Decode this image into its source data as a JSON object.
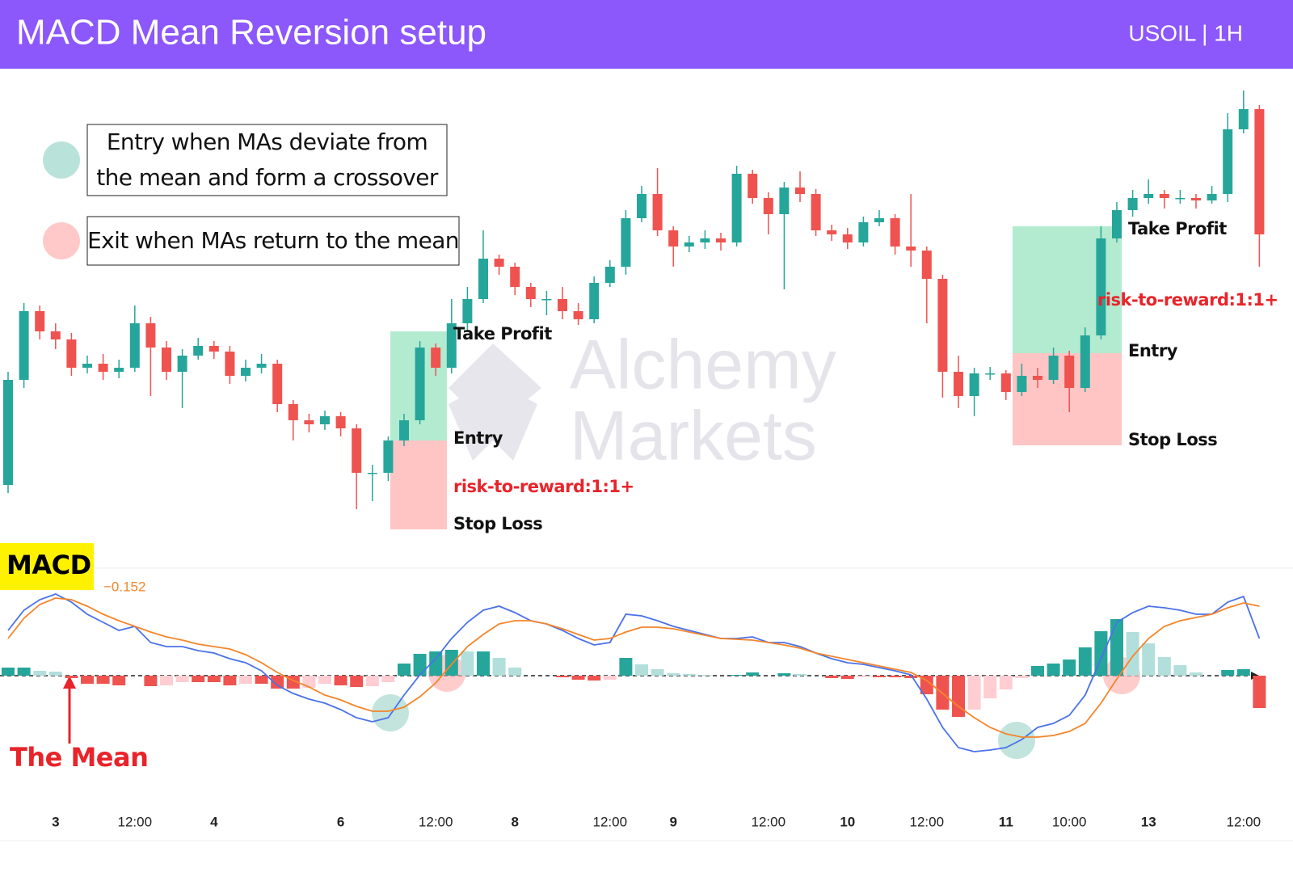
{
  "header": {
    "title": "MACD Mean Reversion setup",
    "symbol": "USOIL | 1H"
  },
  "legend": [
    {
      "lines": [
        "Entry when MAs deviate from",
        "the mean and form a crossover"
      ],
      "color": "#b9e3da"
    },
    {
      "lines": [
        "Exit when MAs return to the mean"
      ],
      "color": "#ffc9c9"
    }
  ],
  "watermark": [
    "Alchemy",
    "Markets"
  ],
  "chart_data": {
    "type": "candlestick",
    "up_color": "#26a69a",
    "down_color": "#ef5350",
    "ylim": [
      0,
      600
    ],
    "categories": [
      null,
      null,
      null,
      "3",
      null,
      null,
      null,
      null,
      "12:00",
      null,
      null,
      null,
      null,
      "4",
      null,
      null,
      null,
      null,
      null,
      null,
      null,
      "6",
      null,
      null,
      null,
      null,
      null,
      "12:00",
      null,
      null,
      null,
      null,
      "8",
      null,
      null,
      null,
      null,
      null,
      "12:00",
      null,
      null,
      null,
      "9",
      null,
      null,
      null,
      null,
      null,
      "12:00",
      null,
      null,
      null,
      null,
      "10",
      null,
      null,
      null,
      null,
      "12:00",
      null,
      null,
      null,
      null,
      "11",
      null,
      null,
      null,
      "10:00",
      null,
      null,
      null,
      null,
      "13",
      null,
      null,
      null,
      null,
      null,
      "12:00",
      null
    ],
    "open": [
      90,
      220,
      305,
      280,
      270,
      235,
      240,
      230,
      235,
      290,
      260,
      230,
      250,
      262,
      255,
      225,
      235,
      240,
      190,
      170,
      165,
      175,
      160,
      105,
      105,
      145,
      170,
      260,
      235,
      290,
      320,
      370,
      360,
      335,
      320,
      320,
      305,
      295,
      340,
      360,
      420,
      450,
      405,
      385,
      390,
      395,
      390,
      475,
      445,
      425,
      458,
      450,
      405,
      400,
      390,
      415,
      420,
      385,
      380,
      345,
      230,
      200,
      228,
      228,
      205,
      225,
      220,
      250,
      210,
      275,
      395,
      430,
      445,
      450,
      445,
      445,
      442,
      450,
      530,
      555
    ],
    "high": [
      230,
      315,
      312,
      290,
      278,
      250,
      252,
      245,
      312,
      298,
      268,
      258,
      272,
      268,
      262,
      245,
      252,
      245,
      195,
      178,
      182,
      180,
      165,
      115,
      150,
      178,
      268,
      265,
      320,
      335,
      405,
      375,
      365,
      340,
      330,
      335,
      315,
      348,
      368,
      430,
      460,
      482,
      410,
      398,
      405,
      402,
      485,
      480,
      452,
      465,
      478,
      456,
      412,
      408,
      422,
      430,
      425,
      450,
      385,
      350,
      250,
      235,
      236,
      232,
      240,
      235,
      260,
      256,
      285,
      410,
      440,
      455,
      468,
      455,
      455,
      450,
      460,
      550,
      578,
      560
    ],
    "low": [
      80,
      210,
      270,
      258,
      225,
      228,
      220,
      222,
      230,
      200,
      220,
      185,
      245,
      246,
      215,
      218,
      228,
      180,
      145,
      155,
      158,
      150,
      60,
      70,
      95,
      138,
      165,
      225,
      228,
      280,
      315,
      350,
      325,
      310,
      300,
      295,
      288,
      290,
      335,
      350,
      415,
      398,
      360,
      378,
      382,
      380,
      385,
      438,
      400,
      332,
      440,
      398,
      392,
      382,
      385,
      410,
      375,
      360,
      290,
      198,
      185,
      175,
      220,
      195,
      200,
      210,
      215,
      180,
      205,
      270,
      390,
      422,
      438,
      432,
      438,
      432,
      438,
      440,
      525,
      360
    ],
    "close": [
      220,
      305,
      280,
      270,
      235,
      240,
      230,
      235,
      290,
      260,
      230,
      250,
      262,
      255,
      225,
      235,
      240,
      190,
      170,
      165,
      175,
      160,
      105,
      105,
      145,
      170,
      260,
      235,
      290,
      320,
      370,
      360,
      335,
      320,
      320,
      305,
      295,
      340,
      360,
      420,
      450,
      405,
      385,
      390,
      395,
      390,
      475,
      445,
      425,
      458,
      450,
      405,
      400,
      390,
      415,
      420,
      385,
      380,
      345,
      230,
      200,
      228,
      228,
      205,
      225,
      220,
      250,
      210,
      275,
      395,
      430,
      445,
      450,
      445,
      445,
      442,
      450,
      530,
      555,
      400
    ],
    "trades": [
      {
        "take_profit": 280,
        "entry": 145,
        "stop_loss": 35,
        "tp_label": "Take Profit",
        "rr_label": "risk-to-reward:1:1+",
        "entry_label": "Entry",
        "sl_label": "Stop Loss"
      },
      {
        "take_profit": 410,
        "entry": 253,
        "stop_loss": 139,
        "tp_label": "Take Profit",
        "rr_label": "risk-to-reward:1:1+",
        "entry_label": "Entry",
        "sl_label": "Stop Loss"
      }
    ],
    "tp_color": "#b3ebd0",
    "sl_color": "#ffc5c5",
    "macd": {
      "label": "MACD",
      "readout": "−0.152",
      "readout_color": "#f4852a",
      "mean_label": "The Mean",
      "ylim": [
        -150,
        150
      ],
      "series": [
        {
          "color": "#4a72e8",
          "values": [
            56,
            81,
            94,
            101,
            91,
            76,
            66,
            56,
            61,
            41,
            36,
            36,
            31,
            28,
            21,
            16,
            6,
            -12,
            -22,
            -29,
            -34,
            -42,
            -52,
            -57,
            -52,
            -24,
            1,
            21,
            46,
            66,
            81,
            86,
            78,
            68,
            64,
            56,
            46,
            38,
            41,
            76,
            74,
            68,
            61,
            56,
            51,
            46,
            46,
            48,
            41,
            41,
            36,
            28,
            21,
            16,
            14,
            10,
            6,
            1,
            -29,
            -64,
            -89,
            -94,
            -92,
            -89,
            -79,
            -64,
            -59,
            -49,
            -24,
            21,
            66,
            78,
            86,
            84,
            81,
            76,
            76,
            91,
            98,
            46
          ]
        },
        {
          "color": "#f4852a",
          "values": [
            46,
            71,
            88,
            96,
            94,
            86,
            76,
            68,
            61,
            54,
            48,
            44,
            39,
            36,
            33,
            26,
            16,
            4,
            -6,
            -14,
            -24,
            -30,
            -38,
            -44,
            -44,
            -39,
            -26,
            -9,
            14,
            36,
            51,
            64,
            68,
            68,
            64,
            58,
            51,
            44,
            46,
            54,
            60,
            60,
            58,
            54,
            50,
            46,
            45,
            44,
            41,
            38,
            34,
            28,
            24,
            20,
            16,
            12,
            8,
            4,
            -6,
            -22,
            -38,
            -52,
            -64,
            -72,
            -76,
            -76,
            -74,
            -69,
            -59,
            -34,
            -4,
            24,
            46,
            61,
            68,
            72,
            76,
            84,
            90,
            86
          ]
        }
      ],
      "histogram": {
        "up_color": "#26a69a",
        "up_fade": "#b2dfdb",
        "down_color": "#ef5350",
        "down_fade": "#ffcdd2",
        "values": [
          10,
          10,
          6,
          5,
          -3,
          -10,
          -10,
          -12,
          0,
          -13,
          -12,
          -8,
          -8,
          -8,
          -12,
          -10,
          -10,
          -16,
          -16,
          -15,
          -10,
          -12,
          -14,
          -13,
          -8,
          15,
          27,
          30,
          32,
          30,
          30,
          22,
          10,
          0,
          0,
          -2,
          -5,
          -6,
          -5,
          22,
          14,
          8,
          3,
          2,
          1,
          0,
          1,
          4,
          0,
          3,
          2,
          0,
          -3,
          -4,
          -2,
          -2,
          -2,
          -3,
          -23,
          -42,
          -51,
          -42,
          -28,
          -17,
          -3,
          12,
          15,
          20,
          35,
          55,
          70,
          54,
          40,
          23,
          13,
          4,
          0,
          7,
          8,
          -40
        ]
      }
    }
  }
}
